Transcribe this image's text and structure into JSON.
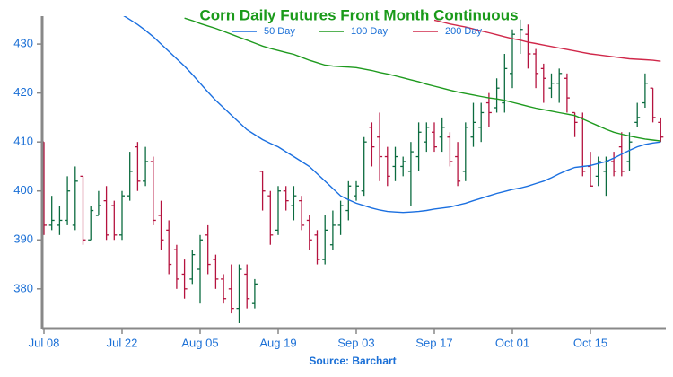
{
  "chart_data": {
    "type": "ohlc",
    "title": "Corn Daily Futures Front Month Continuous",
    "source": "Source: Barchart",
    "categories": [
      "Jul 08",
      null,
      null,
      null,
      null,
      null,
      null,
      null,
      null,
      null,
      "Jul 22",
      null,
      null,
      null,
      null,
      null,
      null,
      null,
      null,
      null,
      "Aug 05",
      null,
      null,
      null,
      null,
      null,
      null,
      null,
      null,
      null,
      "Aug 19",
      null,
      null,
      null,
      null,
      null,
      null,
      null,
      null,
      null,
      "Sep 03",
      null,
      null,
      null,
      null,
      null,
      null,
      null,
      null,
      null,
      "Sep 17",
      null,
      null,
      null,
      null,
      null,
      null,
      null,
      null,
      null,
      "Oct 01",
      null,
      null,
      null,
      null,
      null,
      null,
      null,
      null,
      null,
      "Oct 15",
      null,
      null,
      null,
      null,
      null,
      null,
      null,
      null,
      null
    ],
    "open": [
      410,
      393,
      393,
      394,
      393,
      403,
      390,
      395,
      398,
      397,
      391,
      399,
      409,
      402,
      406,
      395,
      392,
      388,
      383,
      382,
      384,
      391,
      386,
      382,
      380,
      376,
      383,
      377,
      404,
      399,
      392,
      400,
      397,
      398,
      394,
      391,
      386,
      389,
      393,
      396,
      399,
      400,
      413,
      411,
      407,
      405,
      405,
      404,
      407,
      410,
      412,
      411,
      411,
      407,
      404,
      411,
      413,
      418,
      417,
      418,
      424,
      431,
      432,
      428,
      425,
      421,
      422,
      423,
      416,
      415,
      405,
      403,
      404,
      406,
      409,
      406,
      414,
      418,
      421,
      414
    ],
    "high": [
      410,
      399,
      397,
      403,
      405,
      403,
      397,
      400,
      401,
      398,
      400,
      408,
      410,
      409,
      407,
      398,
      394,
      389,
      386,
      388,
      391,
      393,
      387,
      383,
      385,
      385,
      385,
      382,
      404,
      400,
      401,
      401,
      401,
      399,
      395,
      392,
      395,
      396,
      398,
      402,
      402,
      411,
      414,
      416,
      409,
      409,
      407,
      410,
      414,
      414,
      414,
      415,
      412,
      410,
      414,
      418,
      418,
      420,
      423,
      428,
      433,
      435,
      434,
      429,
      426,
      424,
      425,
      424,
      416,
      416,
      408,
      407,
      407,
      408,
      412,
      412,
      418,
      424,
      421,
      415
    ],
    "low": [
      391,
      392,
      391,
      393,
      392,
      389,
      390,
      395,
      390,
      390,
      390,
      398,
      400,
      401,
      393,
      388,
      383,
      380,
      378,
      381,
      377,
      383,
      380,
      377,
      375,
      373,
      376,
      376,
      396,
      389,
      391,
      396,
      394,
      392,
      388,
      385,
      385,
      388,
      391,
      394,
      398,
      399,
      405,
      402,
      401,
      402,
      403,
      397,
      404,
      408,
      408,
      408,
      405,
      401,
      402,
      409,
      410,
      413,
      416,
      416,
      421,
      428,
      425,
      421,
      418,
      419,
      418,
      416,
      411,
      403,
      401,
      401,
      399,
      403,
      403,
      404,
      413,
      417,
      414,
      410
    ],
    "close": [
      393,
      394,
      394,
      400,
      402,
      390,
      396,
      397,
      391,
      391,
      399,
      404,
      402,
      406,
      394,
      390,
      385,
      382,
      380,
      387,
      390,
      385,
      382,
      378,
      376,
      384,
      378,
      381,
      400,
      391,
      400,
      398,
      399,
      393,
      390,
      386,
      392,
      393,
      397,
      401,
      401,
      410,
      409,
      407,
      403,
      407,
      406,
      408,
      412,
      413,
      409,
      413,
      406,
      402,
      413,
      414,
      416,
      416,
      421,
      425,
      432,
      433,
      428,
      424,
      423,
      422,
      424,
      419,
      414,
      404,
      401,
      406,
      406,
      404,
      404,
      410,
      415,
      422,
      415,
      411
    ],
    "up_color": "#0b6b3f",
    "down_color": "#b5123e",
    "lines": [
      {
        "name": "50 Day",
        "color": "#1a6fe0",
        "values": [
          null,
          null,
          null,
          null,
          null,
          null,
          null,
          null,
          null,
          null,
          436,
          435,
          434,
          432.8,
          431.5,
          430,
          428.5,
          427,
          425.5,
          423.8,
          422,
          420.2,
          418.5,
          417,
          415.5,
          414,
          412.5,
          411.5,
          410.5,
          409.7,
          409,
          408,
          407,
          406,
          405,
          403.5,
          402,
          400.5,
          399,
          398.2,
          397.5,
          397,
          396.5,
          396.1,
          395.8,
          395.7,
          395.6,
          395.7,
          395.8,
          396,
          396.3,
          396.5,
          396.7,
          397.1,
          397.5,
          398,
          398.5,
          399,
          399.5,
          399.9,
          400.3,
          400.6,
          401,
          401.5,
          402,
          402.7,
          403.5,
          404.2,
          404.8,
          405,
          405.2,
          405.6,
          406,
          406.7,
          407.5,
          408.3,
          409,
          409.5,
          409.8,
          410
        ]
      },
      {
        "name": "100 Day",
        "color": "#1e9a1e",
        "values": [
          null,
          null,
          null,
          null,
          null,
          null,
          null,
          null,
          null,
          null,
          null,
          null,
          null,
          null,
          null,
          null,
          null,
          null,
          435.3,
          434.8,
          434.2,
          433.7,
          433.2,
          432.6,
          432,
          431.4,
          430.8,
          430.2,
          429.6,
          429.1,
          428.7,
          428.3,
          427.9,
          427.3,
          426.7,
          426.2,
          425.7,
          425.5,
          425.4,
          425.3,
          425.2,
          424.9,
          424.6,
          424.2,
          423.9,
          423.5,
          423.1,
          422.7,
          422.3,
          421.8,
          421.4,
          421,
          420.6,
          420.2,
          419.9,
          419.6,
          419.3,
          419,
          418.8,
          418.5,
          418.1,
          417.7,
          417.3,
          416.9,
          416.6,
          416.3,
          416,
          415.7,
          415.4,
          414.7,
          414,
          413.3,
          412.6,
          412,
          411.6,
          411.2,
          410.9,
          410.6,
          410.4,
          410.2
        ]
      },
      {
        "name": "200 Day",
        "color": "#d0284a",
        "values": [
          null,
          null,
          null,
          null,
          null,
          null,
          null,
          null,
          null,
          null,
          null,
          null,
          null,
          null,
          null,
          null,
          null,
          null,
          null,
          null,
          null,
          null,
          null,
          null,
          null,
          null,
          null,
          null,
          null,
          null,
          null,
          null,
          null,
          null,
          null,
          null,
          null,
          null,
          null,
          null,
          null,
          null,
          null,
          null,
          null,
          null,
          null,
          null,
          null,
          null,
          434.9,
          434.5,
          434.1,
          433.8,
          433.5,
          433.1,
          432.7,
          432.3,
          431.9,
          431.5,
          431.1,
          430.8,
          430.4,
          430.1,
          429.8,
          429.5,
          429.2,
          428.9,
          428.6,
          428.3,
          428,
          427.8,
          427.6,
          427.4,
          427.2,
          427,
          426.9,
          426.8,
          426.7,
          426.5
        ]
      }
    ],
    "ylim": [
      371.9,
      435.7
    ],
    "yticks": [
      380,
      390,
      400,
      410,
      420,
      430
    ],
    "title_color": "#1a9a1a",
    "label_color": "#1a6fd6",
    "grid": false
  }
}
